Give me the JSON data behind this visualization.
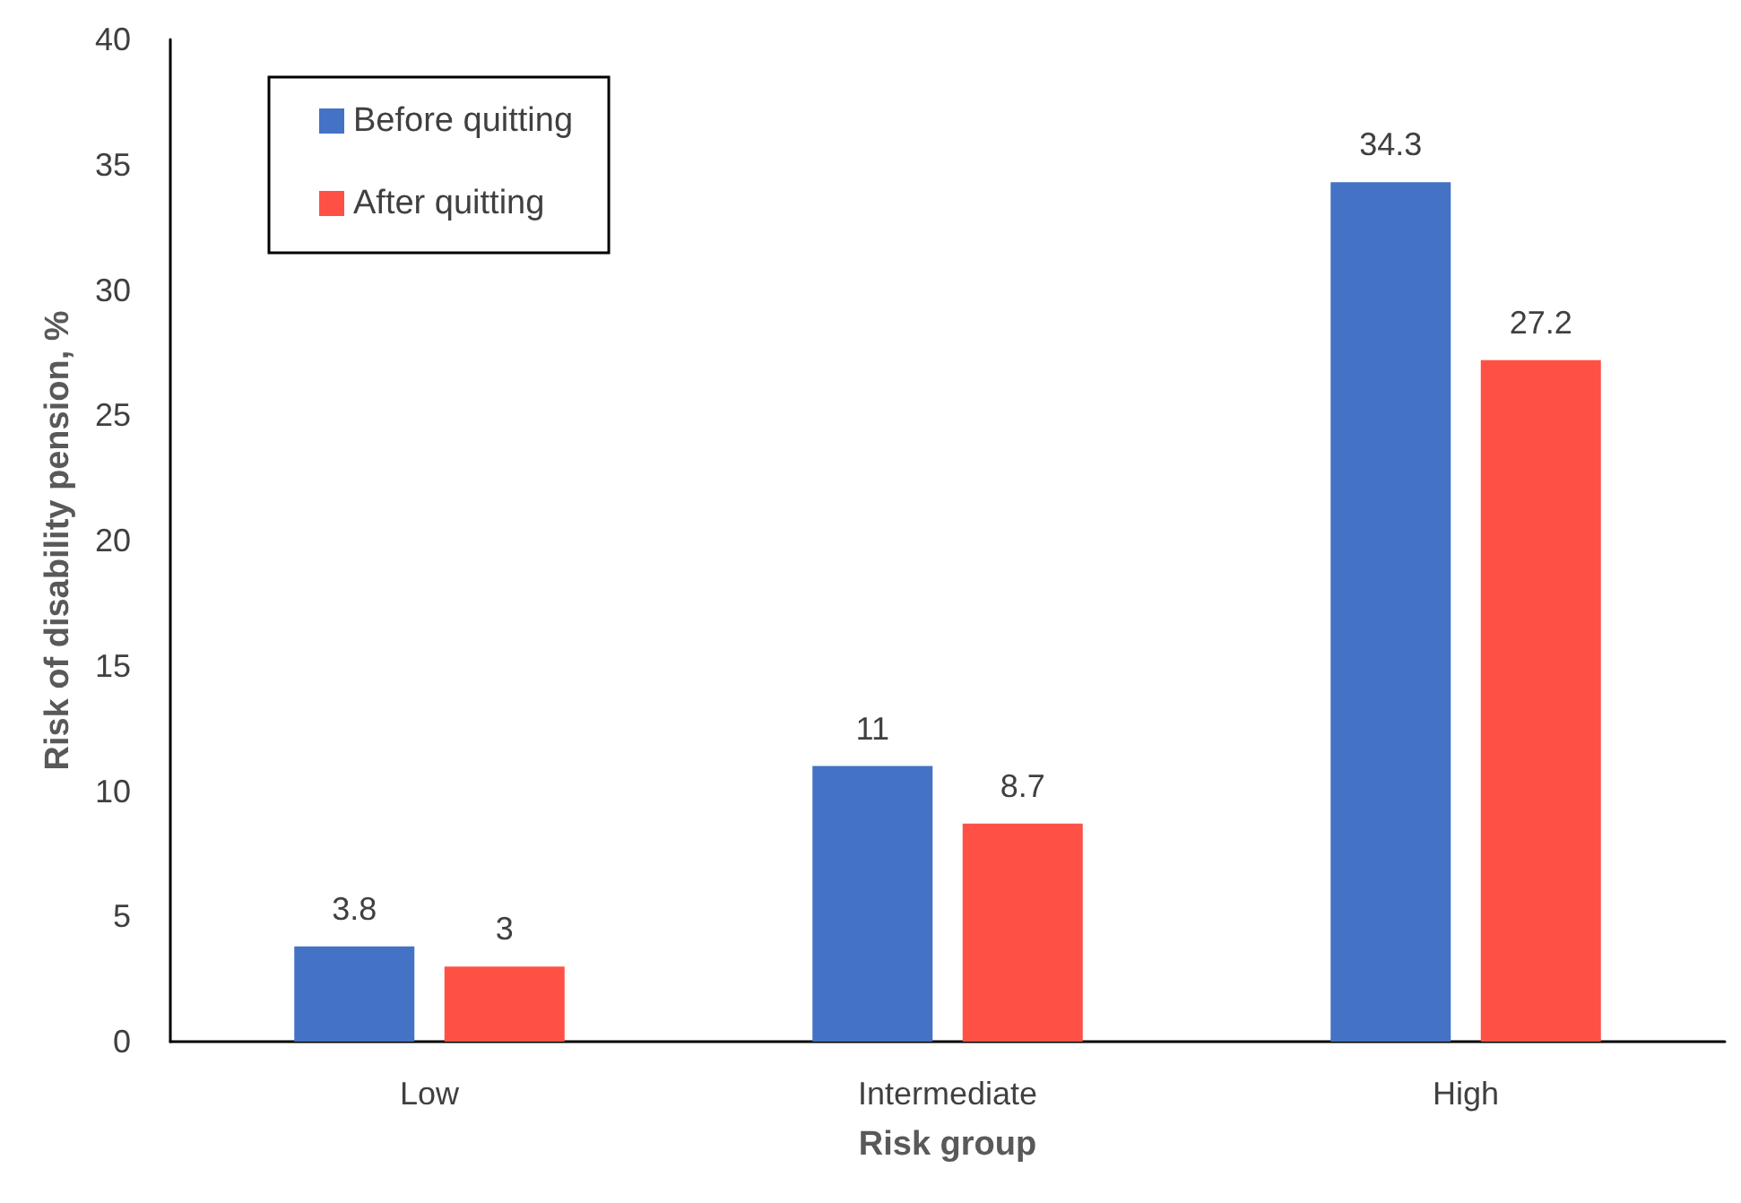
{
  "chart_data": {
    "type": "bar",
    "xlabel": "Risk group",
    "ylabel": "Risk of disability pension, %",
    "categories": [
      "Low",
      "Intermediate",
      "High"
    ],
    "series": [
      {
        "name": "Before quitting",
        "color": "#4472c4",
        "values": [
          3.8,
          11,
          34.3
        ]
      },
      {
        "name": "After quitting",
        "color": "#ff5045",
        "values": [
          3,
          8.7,
          27.2
        ]
      }
    ],
    "ylim": [
      0,
      40
    ],
    "yticks": [
      0,
      5,
      10,
      15,
      20,
      25,
      30,
      35,
      40
    ],
    "grid": false,
    "legend": "top left",
    "data_labels": true
  }
}
